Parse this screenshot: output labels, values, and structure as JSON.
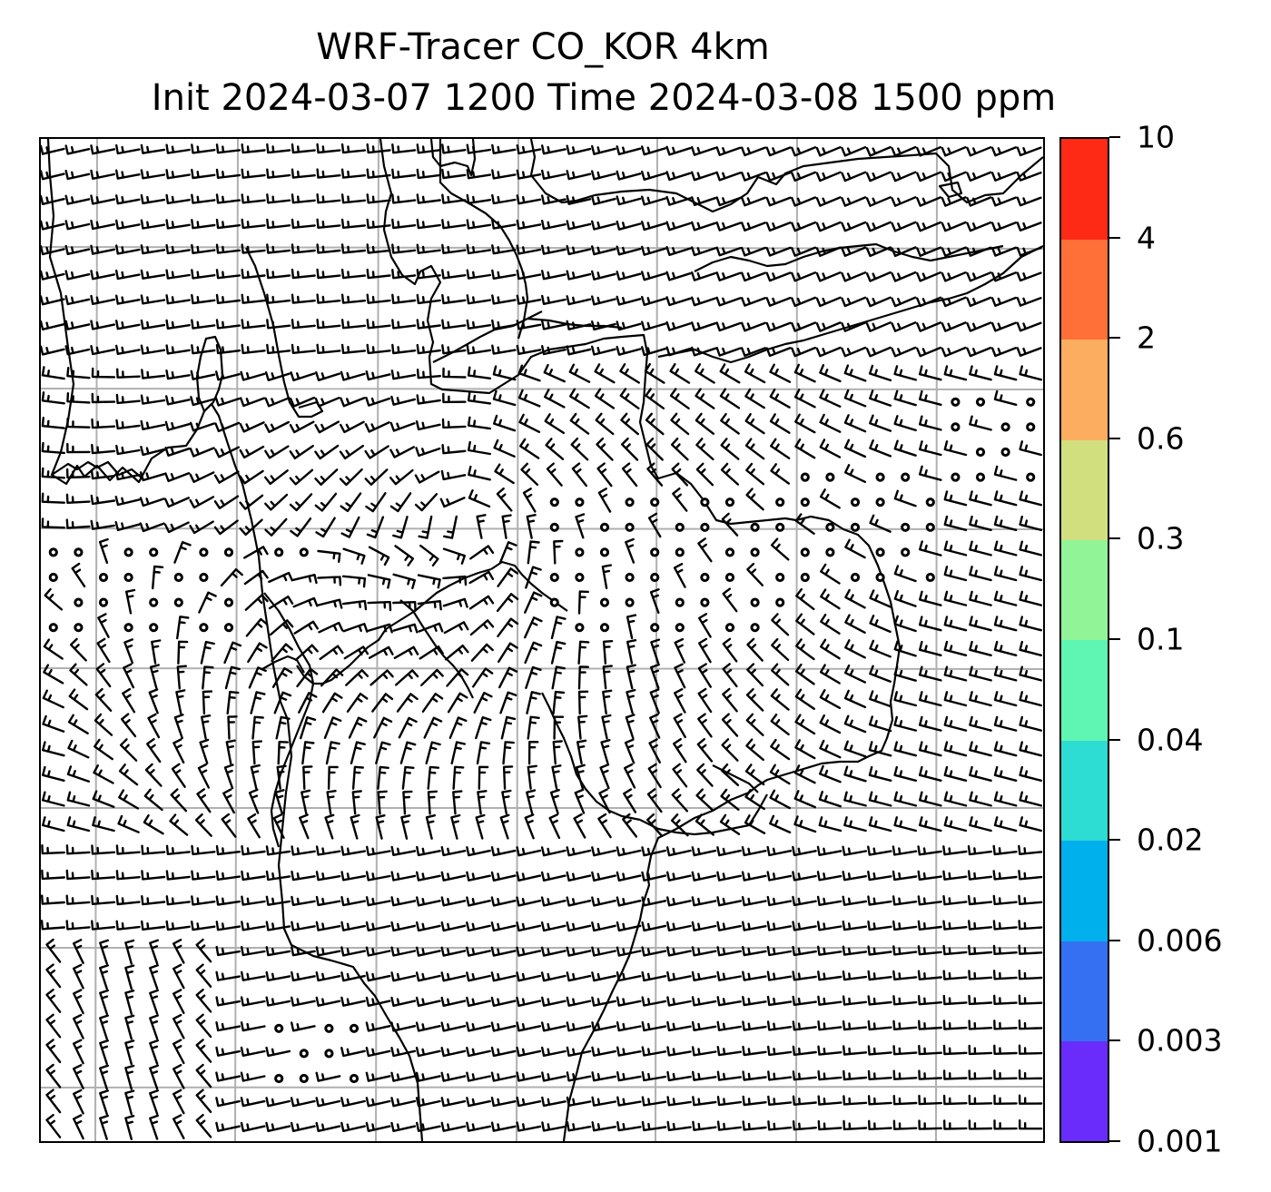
{
  "title": {
    "line1": "WRF-Tracer CO_KOR 4km",
    "line2": "Init 2024-03-07 1200 Time 2024-03-08 1500 ppm"
  },
  "colorbar": {
    "levels": [
      "0.001",
      "0.003",
      "0.006",
      "0.02",
      "0.04",
      "0.1",
      "0.3",
      "0.6",
      "2",
      "4",
      "10"
    ],
    "colors": [
      "#6a2cfb",
      "#3670f2",
      "#00b0ec",
      "#2ddcd2",
      "#5ff6b4",
      "#91f597",
      "#d2df7f",
      "#fdad60",
      "#ff6f38",
      "#ff2a16"
    ]
  },
  "map": {
    "gridlines": true,
    "gridline_color": "#b0b0b0",
    "coastline_color": "#000000",
    "wind_barb_color": "#000000"
  }
}
